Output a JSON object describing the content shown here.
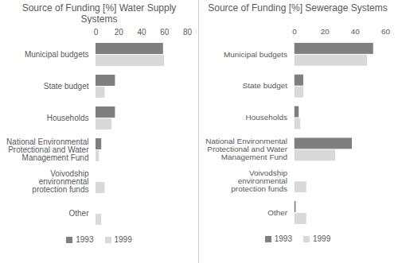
{
  "chart_data": [
    {
      "type": "bar",
      "title": "Source of Funding [%] Water Supply Systems",
      "orientation": "horizontal",
      "categories": [
        "Municipal budgets",
        "State budget",
        "Households",
        "National Environmental Protectional and Water Management Fund",
        "Voivodship environmental protection funds",
        "Other"
      ],
      "series": [
        {
          "name": "1993",
          "color": "#7f7f7f",
          "values": [
            59,
            17,
            17,
            5,
            0,
            0
          ]
        },
        {
          "name": "1999",
          "color": "#d9d9d9",
          "values": [
            60,
            8,
            14,
            3,
            8,
            5
          ]
        }
      ],
      "xlim": [
        0,
        80
      ],
      "xticks": [
        0,
        20,
        40,
        60,
        80
      ],
      "grid": false,
      "legend": "bottom"
    },
    {
      "type": "bar",
      "title": "Source of Funding [%] Sewerage Systems",
      "orientation": "horizontal",
      "categories": [
        "Municipal budgets",
        "State budget",
        "Households",
        "National Environmental Protectional and Water Management Fund",
        "Voivodship environmental protection funds",
        "Other"
      ],
      "series": [
        {
          "name": "1993",
          "color": "#7f7f7f",
          "values": [
            52,
            6,
            3,
            38,
            0,
            1
          ]
        },
        {
          "name": "1999",
          "color": "#d9d9d9",
          "values": [
            48,
            6,
            4,
            27,
            8,
            8
          ]
        }
      ],
      "xlim": [
        0,
        60
      ],
      "xticks": [
        0,
        20,
        40,
        60
      ],
      "grid": false,
      "legend": "bottom"
    }
  ]
}
